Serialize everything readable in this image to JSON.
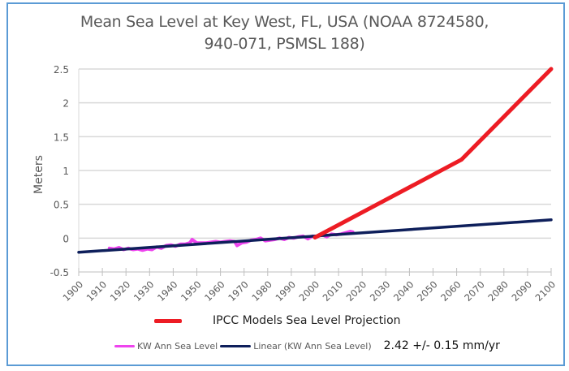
{
  "chart_data": {
    "type": "line",
    "title": "Mean Sea Level at Key West, FL, USA  (NOAA 8724580, 940-071, PSMSL 188)",
    "title_lines": [
      "Mean Sea Level at Key West, FL, USA  (NOAA 8724580,",
      "940-071, PSMSL 188)"
    ],
    "xlabel": "",
    "ylabel": "Meters",
    "xlim": [
      1900,
      2100
    ],
    "ylim": [
      -0.5,
      2.5
    ],
    "x_ticks": [
      "1900",
      "1910",
      "1920",
      "1930",
      "1940",
      "1950",
      "1960",
      "1970",
      "1980",
      "1990",
      "2000",
      "2010",
      "2020",
      "2030",
      "2040",
      "2050",
      "2060",
      "2070",
      "2080",
      "2090",
      "2100"
    ],
    "y_ticks": [
      "2.5",
      "2",
      "1.5",
      "1",
      "0.5",
      "0",
      "-0.5"
    ],
    "y_tick_values": [
      2.5,
      2,
      1.5,
      1,
      0.5,
      0,
      -0.5
    ],
    "grid": "horizontal",
    "series": [
      {
        "name": "KW Ann Sea Level",
        "color": "#ee44ee",
        "x": [
          1913,
          1915,
          1917,
          1919,
          1921,
          1923,
          1925,
          1927,
          1929,
          1931,
          1933,
          1935,
          1937,
          1939,
          1941,
          1943,
          1945,
          1947,
          1948,
          1950,
          1952,
          1954,
          1956,
          1958,
          1960,
          1962,
          1964,
          1966,
          1967,
          1969,
          1971,
          1973,
          1975,
          1977,
          1979,
          1981,
          1983,
          1985,
          1987,
          1989,
          1991,
          1993,
          1995,
          1997,
          1999,
          2001,
          2003,
          2005,
          2007,
          2009,
          2011,
          2013,
          2015,
          2016
        ],
        "values": [
          -0.15,
          -0.16,
          -0.14,
          -0.17,
          -0.15,
          -0.17,
          -0.16,
          -0.18,
          -0.16,
          -0.17,
          -0.13,
          -0.15,
          -0.11,
          -0.1,
          -0.12,
          -0.09,
          -0.09,
          -0.07,
          -0.02,
          -0.07,
          -0.07,
          -0.07,
          -0.06,
          -0.05,
          -0.06,
          -0.05,
          -0.04,
          -0.05,
          -0.11,
          -0.07,
          -0.06,
          -0.03,
          -0.02,
          0.0,
          -0.04,
          -0.03,
          -0.02,
          0.0,
          -0.02,
          0.01,
          0.0,
          0.02,
          0.03,
          -0.01,
          0.03,
          0.02,
          0.05,
          0.02,
          0.06,
          0.05,
          0.06,
          0.08,
          0.1,
          0.09
        ]
      },
      {
        "name": "Linear (KW Ann Sea Level)",
        "color": "#0e1f5b",
        "x": [
          1900,
          2100
        ],
        "values": [
          -0.21,
          0.27
        ]
      },
      {
        "name": "IPCC Models Sea Level Projection",
        "color": "#ed1c24",
        "x": [
          2000,
          2062,
          2100
        ],
        "values": [
          0.01,
          1.16,
          2.5
        ]
      }
    ],
    "annotation": "2.42 +/- 0.15 mm/yr",
    "legend_position": "bottom"
  }
}
